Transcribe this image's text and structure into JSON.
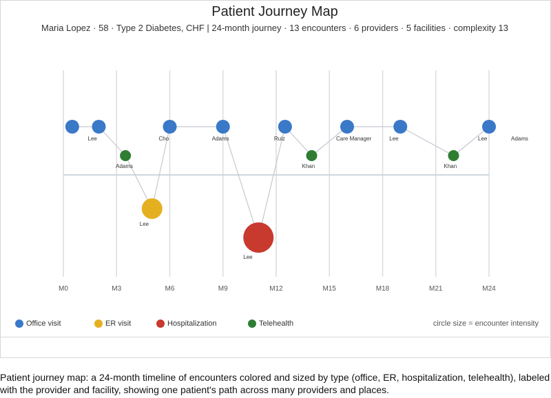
{
  "title": "Patient Journey Map",
  "subtitle": "Maria Lopez · 58 · Type 2 Diabetes, CHF   |   24-month journey · 13 encounters · 6 providers · 5 facilities · complexity 13",
  "caption": "Patient journey map: a 24-month timeline of encounters colored and sized by type (office, ER, hospitalization, telehealth), labeled with the provider and facility, showing one patient's path across many providers and places.",
  "legend_note": "circle size = encounter intensity",
  "colors": {
    "office": "#3a78c8",
    "er": "#e5b020",
    "hospitalization": "#c8392e",
    "telehealth": "#2e7d32"
  },
  "chart_data": {
    "type": "scatter",
    "x_ticks": [
      "M0",
      "M3",
      "M6",
      "M9",
      "M12",
      "M15",
      "M18",
      "M21",
      "M24"
    ],
    "xlim": [
      0,
      24
    ],
    "legend": [
      {
        "key": "office",
        "label": "Office visit"
      },
      {
        "key": "er",
        "label": "ER visit"
      },
      {
        "key": "hospitalization",
        "label": "Hospitalization"
      },
      {
        "key": "telehealth",
        "label": "Telehealth"
      }
    ],
    "encounters": [
      {
        "month": 0.5,
        "type": "office",
        "provider": ""
      },
      {
        "month": 2,
        "type": "office",
        "provider": "Lee"
      },
      {
        "month": 3.5,
        "type": "telehealth",
        "provider": "Adams"
      },
      {
        "month": 5,
        "type": "er",
        "provider": "Lee"
      },
      {
        "month": 6,
        "type": "office",
        "provider": "Cho"
      },
      {
        "month": 9,
        "type": "office",
        "provider": "Adams"
      },
      {
        "month": 11,
        "type": "hospitalization",
        "provider": "Lee"
      },
      {
        "month": 12.5,
        "type": "office",
        "provider": "Ruiz"
      },
      {
        "month": 14,
        "type": "telehealth",
        "provider": "Khan"
      },
      {
        "month": 16,
        "type": "office",
        "provider": "Care Manager"
      },
      {
        "month": 19,
        "type": "office",
        "provider": "Lee"
      },
      {
        "month": 22,
        "type": "telehealth",
        "provider": "Khan"
      },
      {
        "month": 24,
        "type": "office",
        "provider": "Lee"
      }
    ],
    "trailing_label": "Adams",
    "grid": true
  }
}
